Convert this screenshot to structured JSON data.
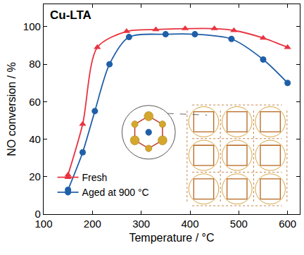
{
  "chart_data": {
    "type": "line",
    "title": "Cu-LTA",
    "x_label": "Temperature / °C",
    "y_label": "NO conversion / %",
    "xlim": [
      100,
      625
    ],
    "ylim": [
      0,
      112
    ],
    "xticks": [
      100,
      200,
      300,
      400,
      500,
      600
    ],
    "yticks": [
      0,
      20,
      40,
      60,
      80,
      100
    ],
    "grid": false,
    "legend": "lower left",
    "series": [
      {
        "name": "Fresh",
        "color": "#e8333f",
        "marker": "triangle-up",
        "line_style": "solid",
        "x": [
          150,
          180,
          210,
          270,
          330,
          390,
          450,
          490,
          550,
          600
        ],
        "values": [
          21,
          48,
          89,
          97.5,
          98.5,
          99,
          99,
          98,
          94,
          89
        ]
      },
      {
        "name": "Aged at 900 °C",
        "color": "#1f5fa8",
        "marker": "circle",
        "line_style": "solid",
        "x": [
          150,
          180,
          205,
          235,
          275,
          350,
          410,
          485,
          550,
          600
        ],
        "values": [
          13,
          33,
          55,
          80,
          94.5,
          96,
          96,
          93.5,
          82.5,
          70
        ]
      }
    ]
  }
}
